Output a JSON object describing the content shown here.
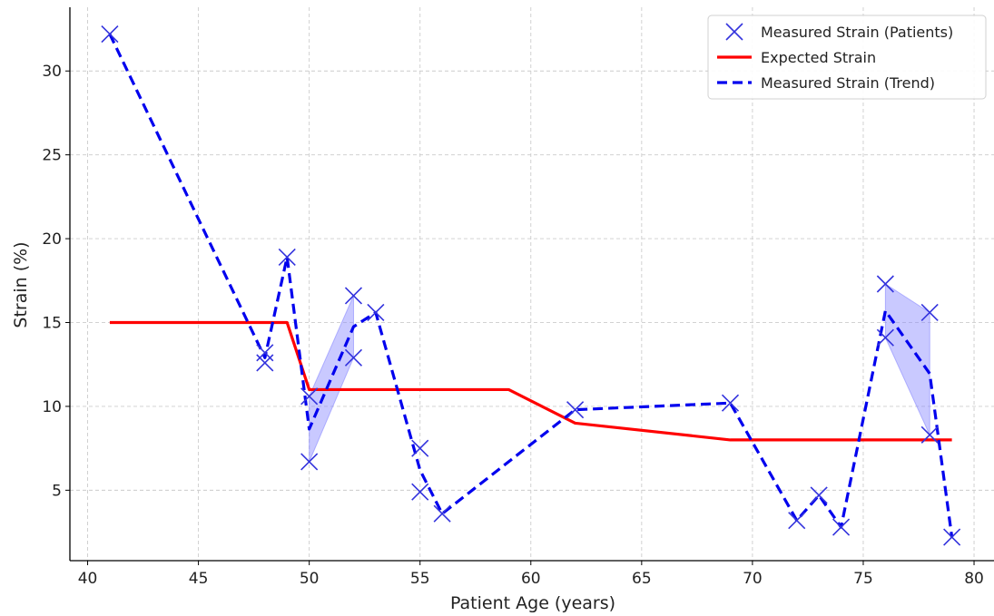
{
  "chart_data": {
    "type": "line",
    "xlabel": "Patient Age (years)",
    "ylabel": "Strain (%)",
    "xlim": [
      39.2,
      80.9
    ],
    "ylim": [
      0.8,
      33.8
    ],
    "x_ticks": [
      40,
      45,
      50,
      55,
      60,
      65,
      70,
      75,
      80
    ],
    "y_ticks": [
      5,
      10,
      15,
      20,
      25,
      30
    ],
    "grid": true,
    "legend_position": "top-right",
    "series": [
      {
        "name": "Measured Strain (Patients)",
        "kind": "scatter",
        "marker": "x",
        "color": "#3333dd",
        "points": [
          {
            "x": 41,
            "y": 32.2
          },
          {
            "x": 48,
            "y": 12.6
          },
          {
            "x": 48,
            "y": 13.2
          },
          {
            "x": 49,
            "y": 18.9
          },
          {
            "x": 50,
            "y": 10.6
          },
          {
            "x": 50,
            "y": 6.7
          },
          {
            "x": 52,
            "y": 16.6
          },
          {
            "x": 52,
            "y": 12.9
          },
          {
            "x": 53,
            "y": 15.6
          },
          {
            "x": 55,
            "y": 7.5
          },
          {
            "x": 55,
            "y": 4.9
          },
          {
            "x": 56,
            "y": 3.6
          },
          {
            "x": 62,
            "y": 9.8
          },
          {
            "x": 69,
            "y": 10.2
          },
          {
            "x": 72,
            "y": 3.2
          },
          {
            "x": 73,
            "y": 4.7
          },
          {
            "x": 74,
            "y": 2.8
          },
          {
            "x": 76,
            "y": 17.3
          },
          {
            "x": 76,
            "y": 14.1
          },
          {
            "x": 78,
            "y": 15.6
          },
          {
            "x": 78,
            "y": 8.3
          },
          {
            "x": 79,
            "y": 2.2
          }
        ]
      },
      {
        "name": "Expected Strain",
        "kind": "line",
        "style": "solid",
        "color": "#ff0000",
        "points": [
          {
            "x": 41,
            "y": 15
          },
          {
            "x": 49,
            "y": 15
          },
          {
            "x": 50,
            "y": 11
          },
          {
            "x": 59,
            "y": 11
          },
          {
            "x": 62,
            "y": 9
          },
          {
            "x": 69,
            "y": 8
          },
          {
            "x": 79,
            "y": 8
          }
        ]
      },
      {
        "name": "Measured Strain (Trend)",
        "kind": "line",
        "style": "dashed",
        "color": "#0000ee",
        "points": [
          {
            "x": 41,
            "y": 32.2
          },
          {
            "x": 48,
            "y": 12.9
          },
          {
            "x": 49,
            "y": 18.9
          },
          {
            "x": 50,
            "y": 8.65
          },
          {
            "x": 52,
            "y": 14.75
          },
          {
            "x": 53,
            "y": 15.6
          },
          {
            "x": 55,
            "y": 6.2
          },
          {
            "x": 56,
            "y": 3.6
          },
          {
            "x": 62,
            "y": 9.8
          },
          {
            "x": 69,
            "y": 10.2
          },
          {
            "x": 72,
            "y": 3.2
          },
          {
            "x": 73,
            "y": 4.7
          },
          {
            "x": 74,
            "y": 2.8
          },
          {
            "x": 76,
            "y": 15.7
          },
          {
            "x": 78,
            "y": 11.95
          },
          {
            "x": 79,
            "y": 2.2
          }
        ]
      }
    ],
    "bands": [
      {
        "color": "#8888ff",
        "opacity": 0.45,
        "points": [
          {
            "x": 50,
            "low": 6.7,
            "high": 10.6
          },
          {
            "x": 52,
            "low": 12.9,
            "high": 16.6
          }
        ]
      },
      {
        "color": "#8888ff",
        "opacity": 0.45,
        "points": [
          {
            "x": 76,
            "low": 14.1,
            "high": 17.3
          },
          {
            "x": 78,
            "low": 8.3,
            "high": 15.6
          }
        ]
      }
    ]
  }
}
